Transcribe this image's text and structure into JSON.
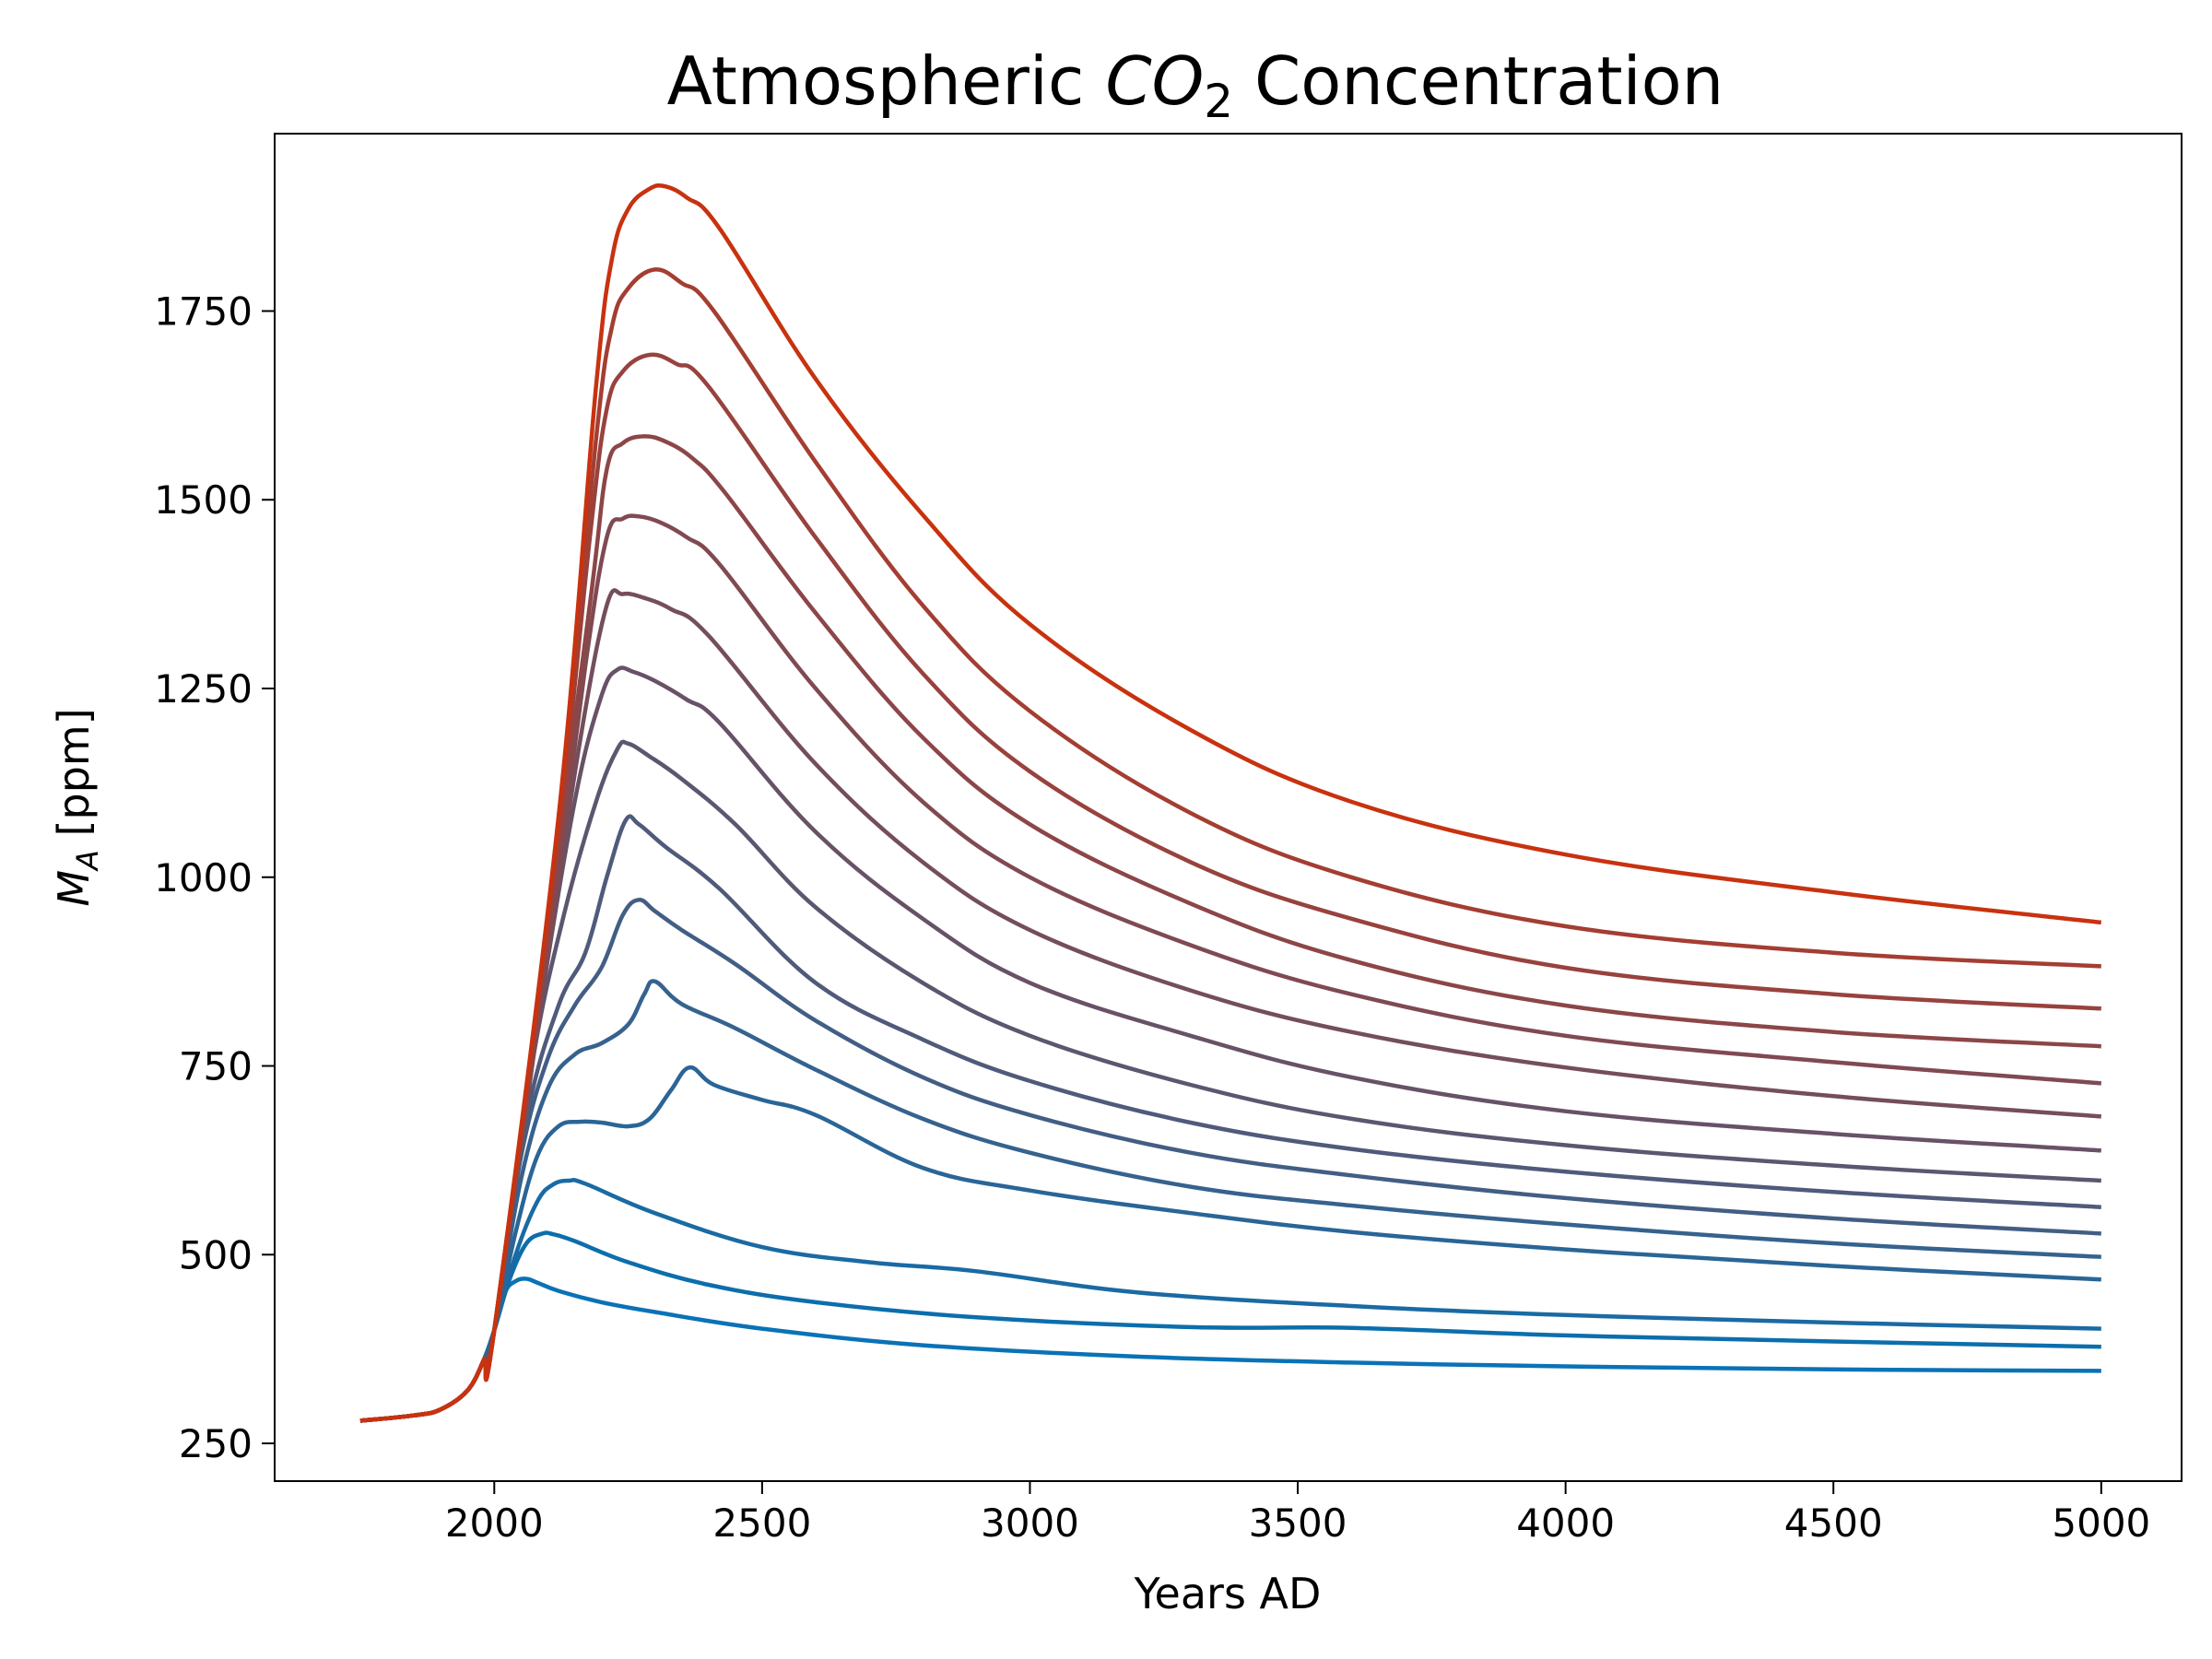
{
  "chart_data": {
    "type": "line",
    "title": {
      "prefix": "Atmospheric ",
      "symbol": "CO",
      "subscript": "2",
      "suffix": " Concentration"
    },
    "xlabel": "Years AD",
    "ylabel": {
      "symbol": "M",
      "subscript": "A",
      "unit": " [ppm]"
    },
    "xlim": [
      1590,
      5150
    ],
    "ylim": [
      200,
      1985
    ],
    "xticks": [
      2000,
      2500,
      3000,
      3500,
      4000,
      4500,
      5000
    ],
    "yticks": [
      250,
      500,
      750,
      1000,
      1250,
      1500,
      1750
    ],
    "grid": false,
    "legend": "none",
    "color_start": "#0a72b6",
    "color_end": "#c8320f",
    "series": [
      {
        "color": "#0a72b6",
        "x": [
          1750,
          1850,
          1900,
          1950,
          1980,
          2000,
          2020,
          2040,
          2060,
          2080,
          2120,
          2200,
          2300,
          2500,
          2800,
          3200,
          3600,
          4000,
          4500,
          5000
        ],
        "y": [
          280,
          287,
          295,
          320,
          360,
          400,
          450,
          465,
          468,
          463,
          452,
          437,
          424,
          402,
          380,
          365,
          357,
          352,
          348,
          346
        ]
      },
      {
        "color": "#0c6eac",
        "x": [
          1750,
          1850,
          1900,
          1950,
          1980,
          2000,
          2030,
          2060,
          2090,
          2110,
          2150,
          2250,
          2400,
          2600,
          2900,
          3300,
          3600,
          4000,
          4500,
          5000
        ],
        "y": [
          280,
          287,
          295,
          320,
          360,
          400,
          470,
          515,
          528,
          527,
          518,
          490,
          460,
          437,
          417,
          404,
          403,
          393,
          385,
          378
        ]
      },
      {
        "color": "#1a6aa3",
        "x": [
          1750,
          1850,
          1900,
          1950,
          1980,
          2000,
          2040,
          2080,
          2110,
          2140,
          2170,
          2300,
          2500,
          2700,
          2900,
          3200,
          3600,
          4000,
          4500,
          5000
        ],
        "y": [
          280,
          287,
          295,
          320,
          360,
          400,
          500,
          570,
          593,
          598,
          594,
          555,
          510,
          490,
          478,
          450,
          432,
          420,
          410,
          402
        ]
      },
      {
        "color": "#2a6597",
        "x": [
          1750,
          1850,
          1900,
          1950,
          1980,
          2000,
          2040,
          2080,
          2120,
          2160,
          2200,
          2250,
          2290,
          2330,
          2365,
          2410,
          2500,
          2600,
          2800,
          3000,
          3300,
          3600,
          4000,
          4500,
          5000
        ],
        "y": [
          280,
          287,
          295,
          320,
          360,
          400,
          530,
          630,
          670,
          676,
          675,
          670,
          680,
          718,
          748,
          725,
          705,
          685,
          615,
          585,
          555,
          530,
          507,
          485,
          467
        ]
      },
      {
        "color": "#36628e",
        "x": [
          1750,
          1850,
          1900,
          1950,
          1980,
          2000,
          2050,
          2100,
          2150,
          2200,
          2250,
          2280,
          2300,
          2350,
          2450,
          2600,
          2800,
          3000,
          3300,
          3600,
          4000,
          4500,
          5000
        ],
        "y": [
          280,
          287,
          295,
          320,
          360,
          400,
          600,
          720,
          765,
          780,
          805,
          845,
          862,
          832,
          800,
          745,
          680,
          635,
          590,
          565,
          540,
          515,
          497
        ]
      },
      {
        "color": "#435e84",
        "x": [
          1750,
          1850,
          1900,
          1950,
          1980,
          2000,
          2050,
          2100,
          2150,
          2200,
          2240,
          2270,
          2300,
          2350,
          2450,
          2600,
          2800,
          3000,
          3300,
          3600,
          4000,
          4500,
          5000
        ],
        "y": [
          280,
          287,
          295,
          320,
          360,
          400,
          630,
          760,
          830,
          880,
          950,
          970,
          955,
          930,
          885,
          810,
          735,
          685,
          635,
          605,
          575,
          548,
          528
        ]
      },
      {
        "color": "#505a7a",
        "x": [
          1750,
          1850,
          1900,
          1950,
          1980,
          2000,
          2060,
          2120,
          2170,
          2210,
          2245,
          2270,
          2320,
          2420,
          2600,
          2800,
          3000,
          3300,
          3600,
          4000,
          4500,
          5000
        ],
        "y": [
          280,
          287,
          295,
          320,
          360,
          400,
          680,
          830,
          900,
          1000,
          1075,
          1070,
          1040,
          985,
          860,
          785,
          730,
          675,
          640,
          610,
          583,
          563
        ]
      },
      {
        "color": "#5c5670",
        "x": [
          1750,
          1850,
          1900,
          1950,
          1980,
          2000,
          2070,
          2130,
          2190,
          2230,
          2250,
          2290,
          2350,
          2450,
          2600,
          2800,
          3000,
          3300,
          3600,
          4000,
          4500,
          5000
        ],
        "y": [
          280,
          287,
          295,
          320,
          360,
          400,
          750,
          950,
          1100,
          1170,
          1177,
          1160,
          1130,
          1070,
          960,
          860,
          790,
          725,
          680,
          645,
          618,
          598
        ]
      },
      {
        "color": "#685266",
        "x": [
          1750,
          1850,
          1900,
          1950,
          1980,
          2000,
          2080,
          2150,
          2200,
          2230,
          2260,
          2300,
          2360,
          2420,
          2600,
          2800,
          3000,
          3300,
          3600,
          4000,
          4500,
          5000
        ],
        "y": [
          280,
          287,
          295,
          320,
          360,
          400,
          800,
          1100,
          1240,
          1275,
          1272,
          1260,
          1235,
          1205,
          1060,
          945,
          860,
          790,
          735,
          690,
          660,
          638
        ]
      },
      {
        "color": "#744e5c",
        "x": [
          1750,
          1850,
          1900,
          1950,
          1980,
          2000,
          2090,
          2160,
          2210,
          2240,
          2280,
          2330,
          2400,
          2600,
          2800,
          3000,
          3300,
          3600,
          4000,
          4500,
          5000
        ],
        "y": [
          280,
          287,
          295,
          320,
          360,
          400,
          850,
          1180,
          1360,
          1375,
          1370,
          1355,
          1320,
          1150,
          1020,
          930,
          850,
          795,
          748,
          710,
          683
        ]
      },
      {
        "color": "#804a52",
        "x": [
          1750,
          1850,
          1900,
          1950,
          1980,
          2000,
          2100,
          2170,
          2210,
          2240,
          2270,
          2310,
          2360,
          2420,
          2600,
          2800,
          3000,
          3300,
          3600,
          4000,
          4500,
          5000
        ],
        "y": [
          280,
          287,
          295,
          320,
          360,
          400,
          900,
          1280,
          1450,
          1475,
          1478,
          1470,
          1450,
          1415,
          1250,
          1100,
          1000,
          910,
          845,
          790,
          755,
          727
        ]
      },
      {
        "color": "#8c4648",
        "x": [
          1750,
          1850,
          1900,
          1950,
          1980,
          2000,
          2100,
          2180,
          2210,
          2240,
          2280,
          2320,
          2370,
          2430,
          2600,
          2800,
          3000,
          3300,
          3600,
          4000,
          4500,
          5000
        ],
        "y": [
          280,
          287,
          295,
          320,
          360,
          400,
          930,
          1370,
          1540,
          1575,
          1584,
          1577,
          1555,
          1510,
          1350,
          1185,
          1070,
          965,
          890,
          830,
          795,
          776
        ]
      },
      {
        "color": "#98423e",
        "x": [
          1750,
          1850,
          1900,
          1950,
          1980,
          2000,
          2110,
          2180,
          2210,
          2240,
          2290,
          2340,
          2400,
          2600,
          2800,
          3000,
          3300,
          3600,
          4000,
          4500,
          5000
        ],
        "y": [
          280,
          287,
          295,
          320,
          360,
          400,
          990,
          1460,
          1620,
          1670,
          1692,
          1680,
          1650,
          1450,
          1270,
          1140,
          1020,
          945,
          880,
          845,
          826
        ]
      },
      {
        "color": "#a43e32",
        "x": [
          1750,
          1850,
          1900,
          1950,
          1980,
          2000,
          2120,
          2190,
          2220,
          2250,
          2300,
          2350,
          2410,
          2600,
          2800,
          3000,
          3300,
          3600,
          4000,
          4500,
          5000
        ],
        "y": [
          280,
          287,
          295,
          320,
          360,
          400,
          1060,
          1580,
          1730,
          1780,
          1805,
          1787,
          1750,
          1550,
          1360,
          1220,
          1085,
          1000,
          935,
          900,
          882
        ]
      },
      {
        "color": "#c8320f",
        "x": [
          1750,
          1850,
          1900,
          1950,
          1980,
          2000,
          2120,
          2190,
          2220,
          2250,
          2290,
          2320,
          2360,
          2420,
          2600,
          2800,
          3000,
          3300,
          3600,
          4000,
          4500,
          5000
        ],
        "y": [
          280,
          287,
          295,
          320,
          360,
          400,
          1080,
          1650,
          1820,
          1885,
          1912,
          1915,
          1900,
          1860,
          1660,
          1480,
          1335,
          1195,
          1100,
          1030,
          980,
          940
        ]
      }
    ]
  }
}
